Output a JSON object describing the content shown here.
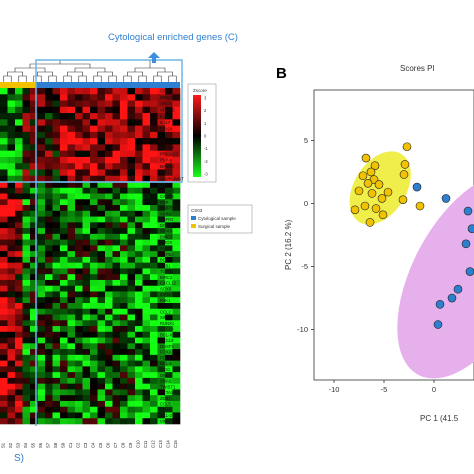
{
  "panel_a": {
    "cytological_label": "Cytological enriched genes (C)",
    "bottom_label": "S)",
    "color_key_title": "Zscore",
    "color_key_ticks": [
      "3",
      "2",
      "1",
      "0",
      "-1",
      "-2",
      "-3"
    ],
    "legend_title": "CS03",
    "legend_items": [
      {
        "label": "Cytological sample",
        "color": "#2f7fd0"
      },
      {
        "label": "Surgical sample",
        "color": "#f2c200"
      }
    ],
    "gene_labels_top": [
      "CD82",
      "BIRC5B",
      "AREG",
      "VEGFC",
      "IL10",
      "IL-17",
      "PIAS4",
      "IL-2",
      "SALL1",
      "FOXL2",
      "PRKAG3",
      "PLP-g",
      "BAMBI",
      "PD-1",
      "SUVR-WNT"
    ],
    "gene_labels_bottom": [
      "PIAS3",
      "VEGFB",
      "CASP3",
      "FNP",
      "MMP7",
      "AXIN2",
      "TNFR2",
      "DCK",
      "RPAIN",
      "BIRC3",
      "SMOX",
      "PIAS1",
      "TGFB2",
      "BCL-2",
      "ZEB1",
      "TGFB1",
      "BIRC2",
      "CXCL12",
      "SOX9",
      "EIF2A",
      "PAK1",
      "VEGFA",
      "CCL2",
      "SIRP",
      "RUNX1",
      "CXCL8",
      "BCL-XL",
      "CXCL9",
      "DUSP1",
      "FOXA1",
      "PDGFC",
      "BCL-6",
      "FAS1",
      "DKK3",
      "SNAI1",
      "TWIST1",
      "ACTA2",
      "ZEB1",
      "CCL5",
      "CD44",
      "BCL-2",
      "VIM"
    ],
    "sample_labels": [
      "S1",
      "S2",
      "S3",
      "S4",
      "S5",
      "S6",
      "S7",
      "S8",
      "S9",
      "C1",
      "C2",
      "C3",
      "C4",
      "C5",
      "C6",
      "C7",
      "C8",
      "C9",
      "C10",
      "C11",
      "C12",
      "C13",
      "C14",
      "C15"
    ],
    "colors": {
      "high": "#ff1a1a",
      "mid": "#000000",
      "low": "#1aff1a",
      "frame": "#6fb6e6",
      "arrow": "#3b8fdc"
    }
  },
  "panel_b": {
    "panel_letter": "B",
    "title": "Scores Pl",
    "chart_data": {
      "type": "scatter",
      "title": "Scores Pl",
      "xlabel": "PC 1 (41.5",
      "ylabel": "PC 2 (16.2 %)",
      "xlim": [
        -12,
        4
      ],
      "ylim": [
        -14,
        9
      ],
      "xticks": [
        -10,
        -5,
        0
      ],
      "yticks": [
        5,
        0,
        -5,
        -10
      ],
      "grid": false,
      "series": [
        {
          "group": "surgical",
          "color": "#f2c200",
          "ellipse_color": "#f0ee4a",
          "points": [
            [
              -6.8,
              3.6
            ],
            [
              -5.9,
              3.0
            ],
            [
              -6.3,
              2.5
            ],
            [
              -7.1,
              2.2
            ],
            [
              -6.0,
              1.9
            ],
            [
              -5.5,
              1.5
            ],
            [
              -6.6,
              1.6
            ],
            [
              -7.5,
              1.0
            ],
            [
              -6.2,
              0.8
            ],
            [
              -5.2,
              0.4
            ],
            [
              -4.6,
              0.9
            ],
            [
              -7.9,
              -0.5
            ],
            [
              -6.9,
              -0.2
            ],
            [
              -5.8,
              -0.4
            ],
            [
              -6.4,
              -1.5
            ],
            [
              -5.1,
              -0.9
            ],
            [
              -2.7,
              4.5
            ],
            [
              -2.9,
              3.1
            ],
            [
              -3.0,
              2.3
            ],
            [
              -3.1,
              0.3
            ],
            [
              -1.4,
              -0.2
            ]
          ]
        },
        {
          "group": "cytological",
          "color": "#2f7fd0",
          "ellipse_color": "#e6b0ec",
          "points": [
            [
              -1.7,
              1.3
            ],
            [
              1.2,
              0.4
            ],
            [
              3.4,
              -0.6
            ],
            [
              3.2,
              -3.2
            ],
            [
              3.6,
              -5.4
            ],
            [
              2.4,
              -6.8
            ],
            [
              1.8,
              -7.5
            ],
            [
              0.6,
              -8.0
            ],
            [
              0.4,
              -9.6
            ],
            [
              3.8,
              -2.0
            ]
          ]
        }
      ]
    }
  }
}
